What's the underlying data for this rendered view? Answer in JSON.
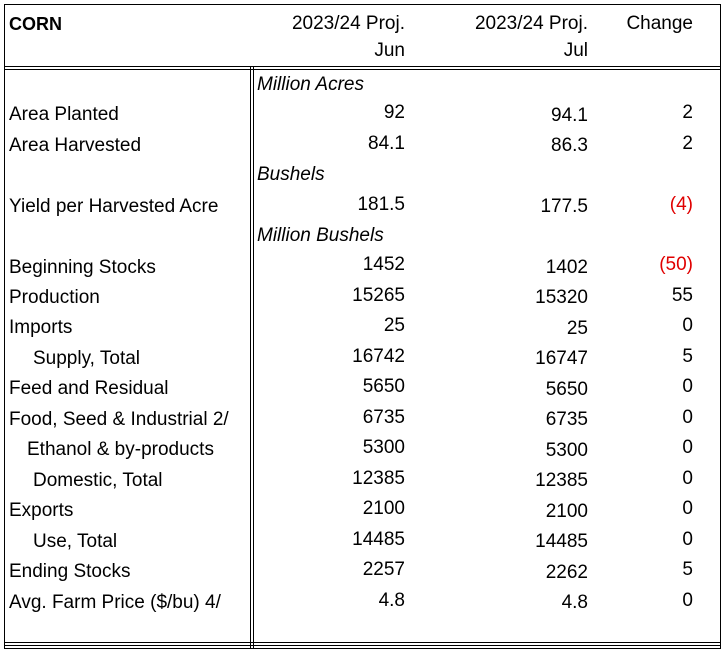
{
  "header": {
    "title": "CORN",
    "col1_line1": "2023/24 Proj.",
    "col1_line2": "Jun",
    "col2_line1": "2023/24 Proj.",
    "col2_line2": "Jul",
    "col3": "Change"
  },
  "units": {
    "acres": "Million Acres",
    "bushels": "Bushels",
    "million_bushels": "Million Bushels"
  },
  "rows": [
    {
      "label": "Area Planted",
      "jun": "92",
      "jul": "94.1",
      "change": "2"
    },
    {
      "label": "Area Harvested",
      "jun": "84.1",
      "jul": "86.3",
      "change": "2"
    },
    {
      "label": "Yield per Harvested Acre",
      "jun": "181.5",
      "jul": "177.5",
      "change": "(4)"
    },
    {
      "label": "Beginning Stocks",
      "jun": "1452",
      "jul": "1402",
      "change": "(50)"
    },
    {
      "label": "Production",
      "jun": "15265",
      "jul": "15320",
      "change": "55"
    },
    {
      "label": "Imports",
      "jun": "25",
      "jul": "25",
      "change": "0"
    },
    {
      "label": "Supply, Total",
      "jun": "16742",
      "jul": "16747",
      "change": "5"
    },
    {
      "label": "Feed and Residual",
      "jun": "5650",
      "jul": "5650",
      "change": "0"
    },
    {
      "label": "Food, Seed & Industrial 2/",
      "jun": "6735",
      "jul": "6735",
      "change": "0"
    },
    {
      "label": "Ethanol & by-products",
      "jun": "5300",
      "jul": "5300",
      "change": "0"
    },
    {
      "label": "Domestic, Total",
      "jun": "12385",
      "jul": "12385",
      "change": "0"
    },
    {
      "label": "Exports",
      "jun": "2100",
      "jul": "2100",
      "change": "0"
    },
    {
      "label": "Use, Total",
      "jun": "14485",
      "jul": "14485",
      "change": "0"
    },
    {
      "label": "Ending Stocks",
      "jun": "2257",
      "jul": "2262",
      "change": "5"
    },
    {
      "label": "Avg. Farm Price ($/bu)  4/",
      "jun": "4.8",
      "jul": "4.8",
      "change": "0"
    }
  ],
  "colors": {
    "negative": "#e00000"
  }
}
